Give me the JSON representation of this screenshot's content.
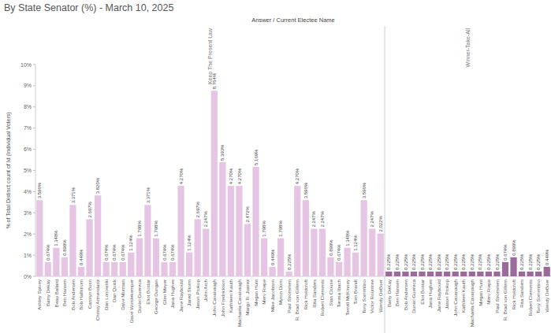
{
  "chart_data": {
    "type": "bar",
    "title": "By State Senator (%) - March 10, 2025",
    "subtitle": "Answer / Current Electee Name",
    "y_label": "% of Total Distinct count of Id (Individual Voters)",
    "ylim": [
      0,
      10
    ],
    "yticks": [
      {
        "value": 0,
        "label": "0%"
      },
      {
        "value": 1,
        "label": "1%"
      },
      {
        "value": 2,
        "label": "2%"
      },
      {
        "value": 3,
        "label": "3%"
      },
      {
        "value": 4,
        "label": "4%"
      },
      {
        "value": 5,
        "label": "5%"
      },
      {
        "value": 6,
        "label": "6%"
      },
      {
        "value": 7,
        "label": "7%"
      },
      {
        "value": 8,
        "label": "8%"
      },
      {
        "value": 9,
        "label": "9%"
      },
      {
        "value": 10,
        "label": "10%"
      }
    ],
    "grid": false,
    "data_labels": true,
    "panels": [
      {
        "name": "Keep The Present Law",
        "color": "#e6c4e3",
        "categories": [
          "Ashley Spivey",
          "Barry Dekay",
          "Beau Ballard",
          "Ben Hansen",
          "Bob Andersen",
          "Bob Hallstrom",
          "Carolyn Bosn",
          "Christy Armendariz",
          "Dan Lonowski",
          "Dan Quick",
          "Dave Murman",
          "Dave Wordekemper",
          "Dunixi Guereca",
          "Eliot Bostar",
          "George Dungan",
          "Glen Meyer",
          "Jana Hughes",
          "Jane Raybould",
          "Jared Storm",
          "Jason Prokop",
          "John Arch",
          "John Cavanaugh",
          "John Fredrickson",
          "Kathleen Kauth",
          "Machaela Cavanaugh",
          "Margo R. Juarez",
          "Megan Hunt",
          "Merv Riepe",
          "Mike Jacobson",
          "Myron Dorn",
          "Paul Strommen",
          "R. Brad von Gillern",
          "Rick Holdcroft",
          "Rita Sanders",
          "Robert Clements",
          "Stan Clouse",
          "Teresa Ibach",
          "Terrell McKinney",
          "Tom Brandt",
          "Tony Sorrentino",
          "Victor Rountree",
          "Wendy DeBoer"
        ],
        "values": [
          3.596,
          0.674,
          1.348,
          0.899,
          3.371,
          0.449,
          2.697,
          3.82,
          0.674,
          0.674,
          0.674,
          1.124,
          1.798,
          3.371,
          1.798,
          0.674,
          0.674,
          4.27,
          1.124,
          2.697,
          2.247,
          8.764,
          5.393,
          4.27,
          4.27,
          2.472,
          5.169,
          1.798,
          0.449,
          1.798,
          0.225,
          4.27,
          3.596,
          2.247,
          2.247,
          0.899,
          0.674,
          1.348,
          1.124,
          3.596,
          2.247,
          2.022
        ],
        "value_labels": [
          "3.596%",
          "0.674%",
          "1.348%",
          "0.899%",
          "3.371%",
          "0.449%",
          "2.697%",
          "3.820%",
          "0.674%",
          "0.674%",
          "0.674%",
          "1.124%",
          "1.798%",
          "3.371%",
          "1.798%",
          "0.674%",
          "0.674%",
          "4.270%",
          "1.124%",
          "2.697%",
          "2.247%",
          "8.764%",
          "5.393%",
          "4.270%",
          "4.270%",
          "2.472%",
          "5.169%",
          "1.798%",
          "0.449%",
          "1.798%",
          "0.225%",
          "4.270%",
          "3.596%",
          "2.247%",
          "2.247%",
          "0.899%",
          "0.674%",
          "1.348%",
          "1.124%",
          "3.596%",
          "2.247%",
          "2.022%"
        ]
      },
      {
        "name": "Winner-Take-All",
        "color": "#9a6a9b",
        "categories": [
          "Barry DeKay",
          "Ben Hansen",
          "Bob Andersen",
          "Dunixi Guereca",
          "Eliot Bostar",
          "Jana Hughes",
          "Jane Raybould",
          "Jason Prokop",
          "John Cavanaugh",
          "Kathleen Kauth",
          "Machaela Cavanaugh",
          "Megan Hunt",
          "Merv Riepe",
          "Paul Strommen",
          "R. Brad von Gillern",
          "Rick Holdcroft",
          "Rita Sanders",
          "Robert Clements",
          "Tony Sorrentino",
          "Wendy DeBoer"
        ],
        "values": [
          0.225,
          0.225,
          0.225,
          0.225,
          0.225,
          0.225,
          0.225,
          0.225,
          0.225,
          0.225,
          0.225,
          0.225,
          0.225,
          0.225,
          0.674,
          0.899,
          0.225,
          0.225,
          0.225,
          0.449
        ],
        "value_labels": [
          "0.225%",
          "0.225%",
          "0.225%",
          "0.225%",
          "0.225%",
          "0.225%",
          "0.225%",
          "0.225%",
          "0.225%",
          "0.225%",
          "0.225%",
          "0.225%",
          "0.225%",
          "0.225%",
          "0.674%",
          "0.899%",
          "0.225%",
          "0.225%",
          "0.225%",
          "0.449%"
        ]
      }
    ]
  }
}
